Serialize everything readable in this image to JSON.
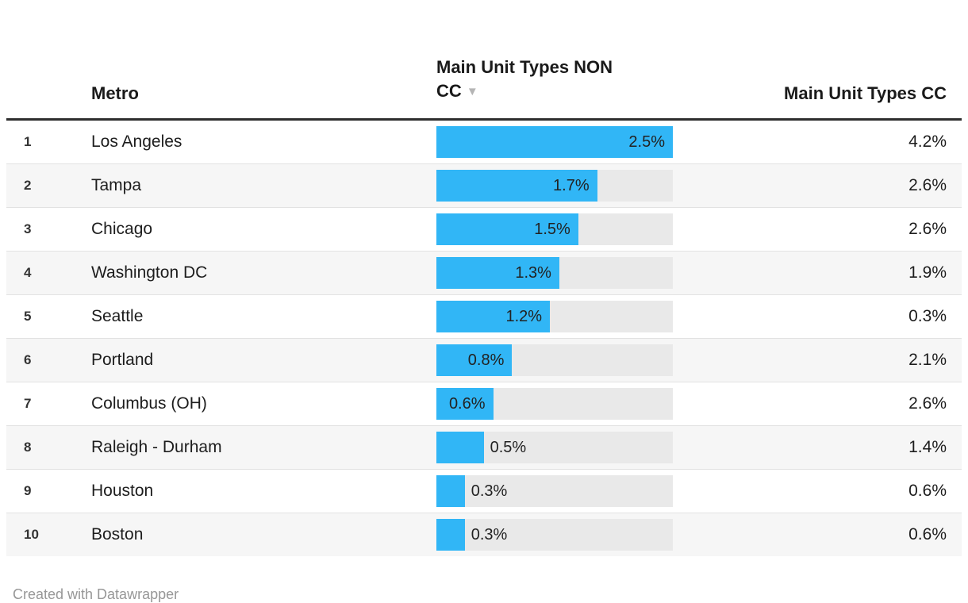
{
  "header": {
    "metro": "Metro",
    "non_cc": "Main Unit Types NON CC",
    "sort_icon": "▼",
    "cc": "Main Unit Types CC"
  },
  "chart_data": {
    "type": "table",
    "columns": [
      "Metro",
      "Main Unit Types NON CC",
      "Main Unit Types CC"
    ],
    "bar_column": "Main Unit Types NON CC",
    "bar_max": 2.5,
    "sorted_by": "Main Unit Types NON CC descending",
    "rows": [
      {
        "rank": "1",
        "metro": "Los Angeles",
        "non_cc": 2.5,
        "non_cc_label": "2.5%",
        "cc_label": "4.2%"
      },
      {
        "rank": "2",
        "metro": "Tampa",
        "non_cc": 1.7,
        "non_cc_label": "1.7%",
        "cc_label": "2.6%"
      },
      {
        "rank": "3",
        "metro": "Chicago",
        "non_cc": 1.5,
        "non_cc_label": "1.5%",
        "cc_label": "2.6%"
      },
      {
        "rank": "4",
        "metro": "Washington DC",
        "non_cc": 1.3,
        "non_cc_label": "1.3%",
        "cc_label": "1.9%"
      },
      {
        "rank": "5",
        "metro": "Seattle",
        "non_cc": 1.2,
        "non_cc_label": "1.2%",
        "cc_label": "0.3%"
      },
      {
        "rank": "6",
        "metro": "Portland",
        "non_cc": 0.8,
        "non_cc_label": "0.8%",
        "cc_label": "2.1%"
      },
      {
        "rank": "7",
        "metro": "Columbus (OH)",
        "non_cc": 0.6,
        "non_cc_label": "0.6%",
        "cc_label": "2.6%"
      },
      {
        "rank": "8",
        "metro": "Raleigh - Durham",
        "non_cc": 0.5,
        "non_cc_label": "0.5%",
        "cc_label": "1.4%"
      },
      {
        "rank": "9",
        "metro": "Houston",
        "non_cc": 0.3,
        "non_cc_label": "0.3%",
        "cc_label": "0.6%"
      },
      {
        "rank": "10",
        "metro": "Boston",
        "non_cc": 0.3,
        "non_cc_label": "0.3%",
        "cc_label": "0.6%"
      }
    ]
  },
  "footer": {
    "credit": "Created with Datawrapper"
  },
  "colors": {
    "bar": "#31b6f6",
    "bar_track": "#e9e9e9",
    "row_alt": "#f6f6f6",
    "header_rule": "#2e2e2e",
    "text": "#1d1d1d",
    "muted": "#979797"
  }
}
